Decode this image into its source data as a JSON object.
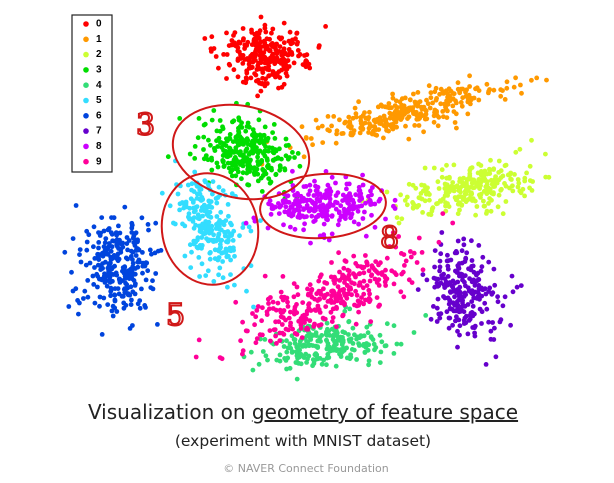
{
  "legend": {
    "items": [
      {
        "label": "0",
        "color": "#ff0000"
      },
      {
        "label": "1",
        "color": "#ff9900"
      },
      {
        "label": "2",
        "color": "#ccff33"
      },
      {
        "label": "3",
        "color": "#00dd00"
      },
      {
        "label": "4",
        "color": "#33dd77"
      },
      {
        "label": "5",
        "color": "#33ddff"
      },
      {
        "label": "6",
        "color": "#0044dd"
      },
      {
        "label": "7",
        "color": "#6600cc"
      },
      {
        "label": "8",
        "color": "#cc00ff"
      },
      {
        "label": "9",
        "color": "#ff0099"
      }
    ]
  },
  "annotations": [
    "3",
    "5",
    "8"
  ],
  "caption": {
    "title_prefix": "Visualization on ",
    "title_link": "geometry of feature space",
    "subtitle": "(experiment with MNIST dataset)"
  },
  "footer": "© NAVER Connect Foundation"
}
